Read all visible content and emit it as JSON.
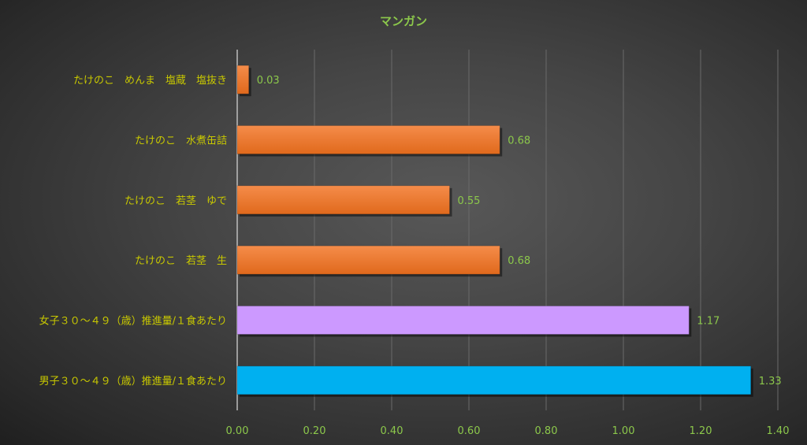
{
  "chart_data": {
    "type": "bar",
    "orientation": "horizontal",
    "title": "マンガン",
    "categories": [
      "たけのこ　めんま　塩蔵　塩抜き",
      "たけのこ　水煮缶詰",
      "たけのこ　若茎　ゆで",
      "たけのこ　若茎　生",
      "女子３０～４９（歳）推進量/１食あたり",
      "男子３０～４９（歳）推進量/１食あたり"
    ],
    "values": [
      0.03,
      0.68,
      0.55,
      0.68,
      1.17,
      1.33
    ],
    "value_labels": [
      "0.03",
      "0.68",
      "0.55",
      "0.68",
      "1.17",
      "1.33"
    ],
    "bar_colors": [
      "#ed7d31",
      "#ed7d31",
      "#ed7d31",
      "#ed7d31",
      "#cc99ff",
      "#00b0f0"
    ],
    "xlim": [
      0,
      1.4
    ],
    "xticks": [
      "0.00",
      "0.20",
      "0.40",
      "0.60",
      "0.80",
      "1.00",
      "1.20",
      "1.40"
    ],
    "xlabel": "",
    "ylabel": "",
    "grid": true,
    "legend": "none",
    "colors": {
      "title": "#8cc84b",
      "category_text": "#c8c800",
      "value_text": "#8cc84b"
    }
  }
}
